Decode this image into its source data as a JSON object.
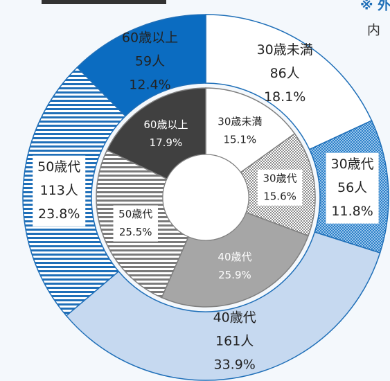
{
  "notes": [
    "※ 外",
    "内"
  ],
  "chart_data": [
    {
      "type": "donut",
      "categories": [
        "30歳未満",
        "30歳代",
        "40歳代",
        "50歳代",
        "60歳以上"
      ],
      "values": [
        18.1,
        11.8,
        33.9,
        23.8,
        12.4
      ],
      "value_labels": [
        "18.1%",
        "11.8%",
        "33.9%",
        "23.8%",
        "12.4%"
      ],
      "counts": [
        86,
        56,
        161,
        113,
        59
      ],
      "count_labels": [
        "86人",
        "56人",
        "161人",
        "113人",
        "59人"
      ],
      "colors": [
        "#ffffff",
        "url(#dotBlue)",
        "#c6d9f0",
        "url(#stripeBlue)",
        "#0b6cc1"
      ],
      "stroke": "#1f6fb8",
      "label_colors": [
        "#222222",
        "#222222",
        "#222222",
        "#222222",
        "#222222"
      ]
    },
    {
      "type": "donut",
      "categories": [
        "30歳未満",
        "30歳代",
        "40歳代",
        "50歳代",
        "60歳以上"
      ],
      "values": [
        15.1,
        15.6,
        25.9,
        25.5,
        17.9
      ],
      "value_labels": [
        "15.1%",
        "15.6%",
        "25.9%",
        "25.5%",
        "17.9%"
      ],
      "colors": [
        "#ffffff",
        "url(#checkGray)",
        "#a6a6a6",
        "url(#stripeGray)",
        "#404040"
      ],
      "stroke": "#7f7f7f",
      "label_colors": [
        "#222222",
        "#222222",
        "#ffffff",
        "#222222",
        "#ffffff"
      ]
    }
  ]
}
